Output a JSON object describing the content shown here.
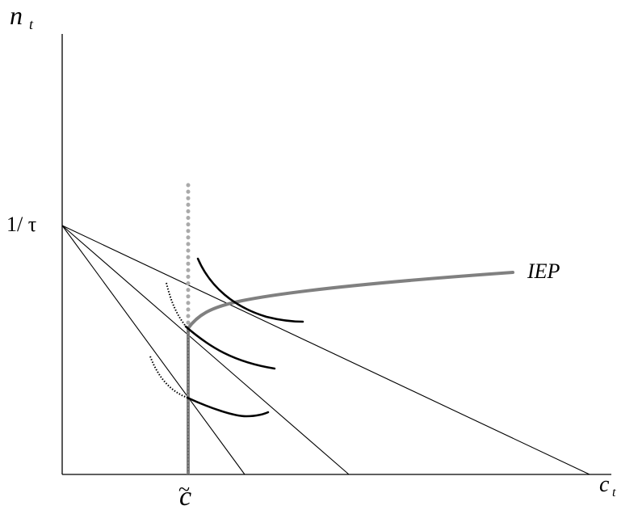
{
  "labels": {
    "y_axis": "n",
    "y_axis_sub": "t",
    "x_axis": "c",
    "x_axis_sub": "t",
    "y_intercept": "1/ τ",
    "x_marker": "c",
    "x_marker_accent": "~",
    "curve": "IEP"
  },
  "colors": {
    "axis": "#000000",
    "budget_lines": "#000000",
    "indifference": "#000000",
    "iep_curve": "#808080",
    "vertical_dotted": "#aaaaaa",
    "vertical_segment": "#808080"
  }
}
